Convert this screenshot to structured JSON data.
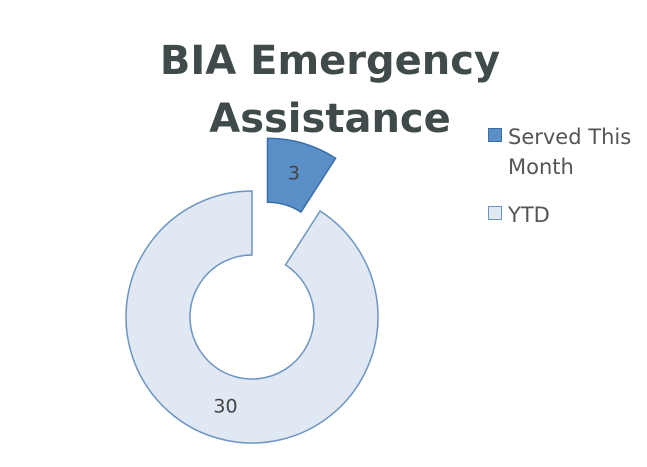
{
  "chart_data": {
    "type": "donut",
    "title": "BIA Emergency Assistance",
    "categories": [
      "Served This Month",
      "YTD"
    ],
    "values": [
      3,
      30
    ],
    "colors": [
      "#5b8fc7",
      "#dfe8f3"
    ],
    "legend": "right"
  }
}
